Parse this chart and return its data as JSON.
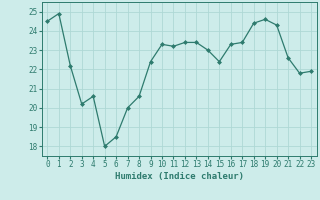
{
  "x": [
    0,
    1,
    2,
    3,
    4,
    5,
    6,
    7,
    8,
    9,
    10,
    11,
    12,
    13,
    14,
    15,
    16,
    17,
    18,
    19,
    20,
    21,
    22,
    23
  ],
  "y": [
    24.5,
    24.9,
    22.2,
    20.2,
    20.6,
    18.0,
    18.5,
    20.0,
    20.6,
    22.4,
    23.3,
    23.2,
    23.4,
    23.4,
    23.0,
    22.4,
    23.3,
    23.4,
    24.4,
    24.6,
    24.3,
    22.6,
    21.8,
    21.9
  ],
  "line_color": "#2e7b6e",
  "marker": "D",
  "marker_size": 2.0,
  "bg_color": "#cdecea",
  "grid_color": "#aed8d5",
  "xlabel": "Humidex (Indice chaleur)",
  "ylim": [
    17.5,
    25.5
  ],
  "xlim": [
    -0.5,
    23.5
  ],
  "yticks": [
    18,
    19,
    20,
    21,
    22,
    23,
    24,
    25
  ],
  "xticks": [
    0,
    1,
    2,
    3,
    4,
    5,
    6,
    7,
    8,
    9,
    10,
    11,
    12,
    13,
    14,
    15,
    16,
    17,
    18,
    19,
    20,
    21,
    22,
    23
  ],
  "label_fontsize": 6.5,
  "tick_fontsize": 5.5,
  "linewidth": 0.9
}
